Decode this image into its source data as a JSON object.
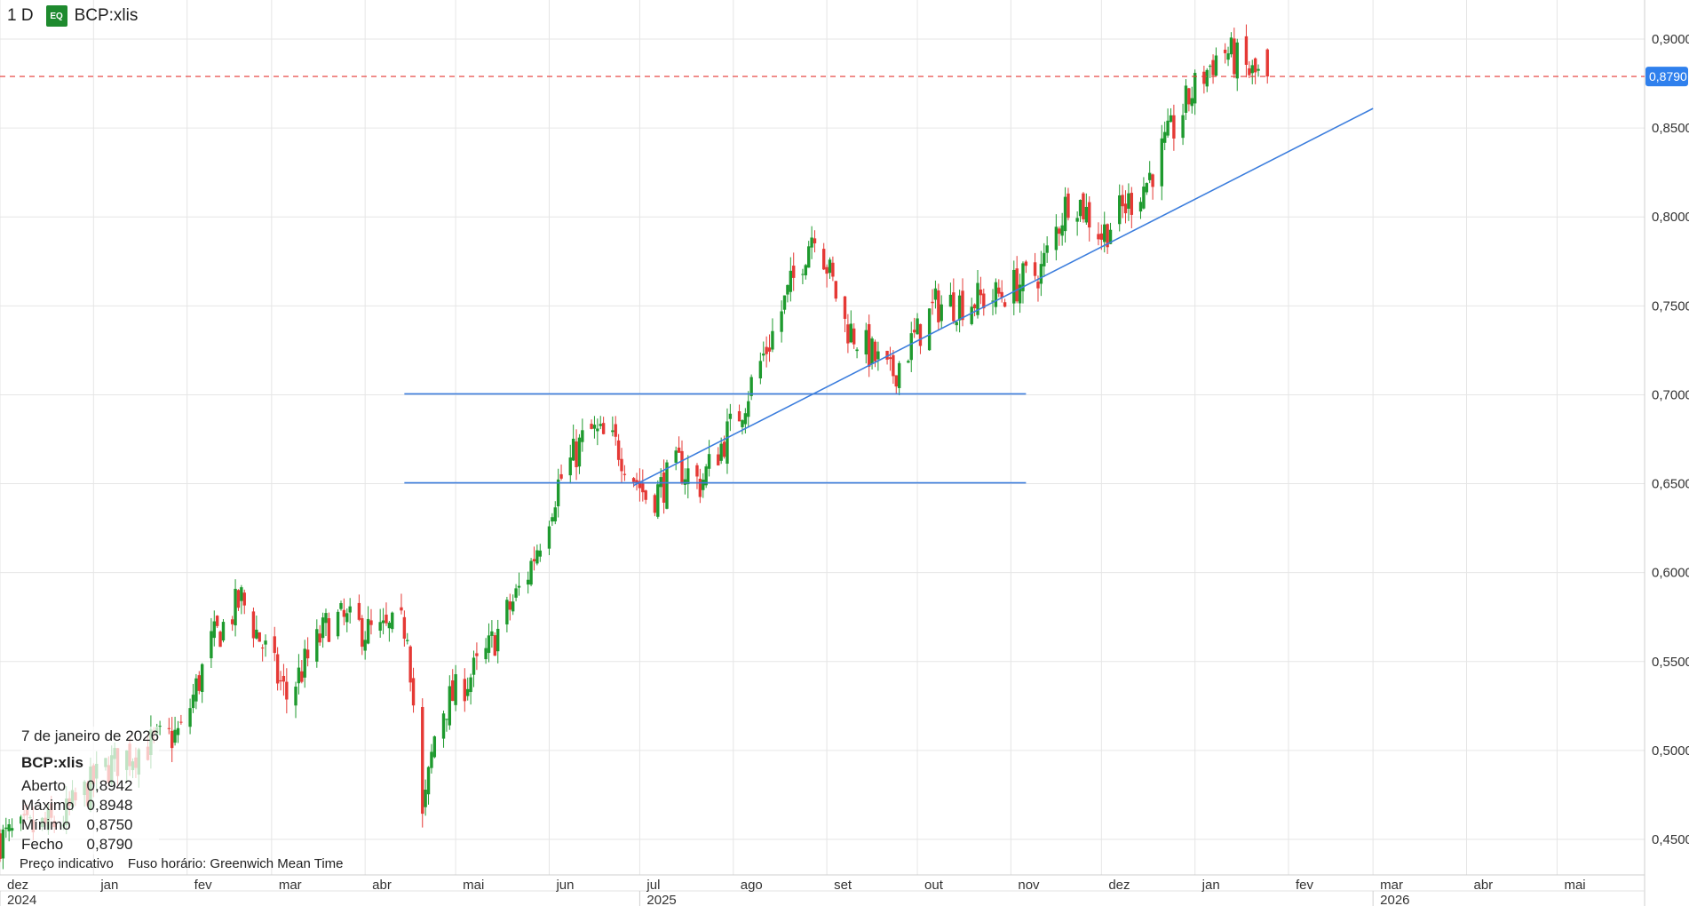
{
  "header": {
    "interval": "1 D",
    "exchange_badge": "EQ",
    "symbol": "BCP:xlis"
  },
  "chart_data": {
    "type": "candlestick",
    "ylim": [
      0.43,
      0.915
    ],
    "y_ticks": [
      "0,9000",
      "0,8500",
      "0,8000",
      "0,7500",
      "0,7000",
      "0,6500",
      "0,6000",
      "0,5500",
      "0,5000",
      "0,4500"
    ],
    "y_tick_values": [
      0.9,
      0.85,
      0.8,
      0.75,
      0.7,
      0.65,
      0.6,
      0.55,
      0.5,
      0.45
    ],
    "x_ticks": [
      "dez",
      "jan",
      "fev",
      "mar",
      "abr",
      "mai",
      "jun",
      "jul",
      "ago",
      "set",
      "out",
      "nov",
      "dez",
      "jan",
      "fev",
      "mar",
      "abr",
      "mai"
    ],
    "x_tick_days": [
      0,
      31,
      62,
      90,
      121,
      151,
      182,
      212,
      243,
      274,
      304,
      335,
      365,
      396,
      427,
      455,
      486,
      516
    ],
    "year_labels": [
      {
        "label": "2024",
        "day": 0
      },
      {
        "label": "2025",
        "day": 212
      },
      {
        "label": "2026",
        "day": 455
      }
    ],
    "day_range": [
      0,
      545
    ],
    "last_price": {
      "value": 0.879,
      "label": "0,8790",
      "color": "#e53935"
    },
    "colors": {
      "up": "#1e9a2e",
      "down": "#e53935",
      "trendline": "#3b7ddd",
      "grid": "#e6e6e6",
      "last_tag": "#2f80ed"
    },
    "key_points": [
      {
        "day": 0,
        "close": 0.45
      },
      {
        "day": 20,
        "close": 0.46
      },
      {
        "day": 35,
        "close": 0.49
      },
      {
        "day": 45,
        "close": 0.5
      },
      {
        "day": 60,
        "close": 0.51
      },
      {
        "day": 70,
        "close": 0.56
      },
      {
        "day": 80,
        "close": 0.585
      },
      {
        "day": 95,
        "close": 0.53
      },
      {
        "day": 110,
        "close": 0.575
      },
      {
        "day": 125,
        "close": 0.565
      },
      {
        "day": 135,
        "close": 0.57
      },
      {
        "day": 140,
        "close": 0.46
      },
      {
        "day": 145,
        "close": 0.52
      },
      {
        "day": 160,
        "close": 0.55
      },
      {
        "day": 175,
        "close": 0.6
      },
      {
        "day": 185,
        "close": 0.65
      },
      {
        "day": 195,
        "close": 0.68
      },
      {
        "day": 205,
        "close": 0.67
      },
      {
        "day": 215,
        "close": 0.64
      },
      {
        "day": 225,
        "close": 0.66
      },
      {
        "day": 232,
        "close": 0.65
      },
      {
        "day": 245,
        "close": 0.69
      },
      {
        "day": 255,
        "close": 0.73
      },
      {
        "day": 270,
        "close": 0.795
      },
      {
        "day": 280,
        "close": 0.74
      },
      {
        "day": 295,
        "close": 0.71
      },
      {
        "day": 310,
        "close": 0.75
      },
      {
        "day": 330,
        "close": 0.755
      },
      {
        "day": 345,
        "close": 0.77
      },
      {
        "day": 355,
        "close": 0.815
      },
      {
        "day": 365,
        "close": 0.79
      },
      {
        "day": 380,
        "close": 0.82
      },
      {
        "day": 395,
        "close": 0.87
      },
      {
        "day": 405,
        "close": 0.895
      },
      {
        "day": 415,
        "close": 0.88
      },
      {
        "day": 420,
        "close": 0.879
      }
    ],
    "trendlines": [
      {
        "from": {
          "day": 134,
          "price": 0.7005
        },
        "to": {
          "day": 340,
          "price": 0.7005
        }
      },
      {
        "from": {
          "day": 134,
          "price": 0.6505
        },
        "to": {
          "day": 340,
          "price": 0.6505
        }
      },
      {
        "from": {
          "day": 210,
          "price": 0.649
        },
        "to": {
          "day": 455,
          "price": 0.861
        }
      }
    ]
  },
  "ohlc_panel": {
    "date": "7 de janeiro de 2026",
    "symbol": "BCP:xlis",
    "rows": [
      {
        "label": "Aberto",
        "value": "0,8942"
      },
      {
        "label": "Máximo",
        "value": "0,8948"
      },
      {
        "label": "Mínimo",
        "value": "0,8750"
      },
      {
        "label": "Fecho",
        "value": "0,8790"
      }
    ]
  },
  "footer": {
    "price_note": "Preço indicativo",
    "timezone": "Fuso horário: Greenwich Mean Time"
  }
}
